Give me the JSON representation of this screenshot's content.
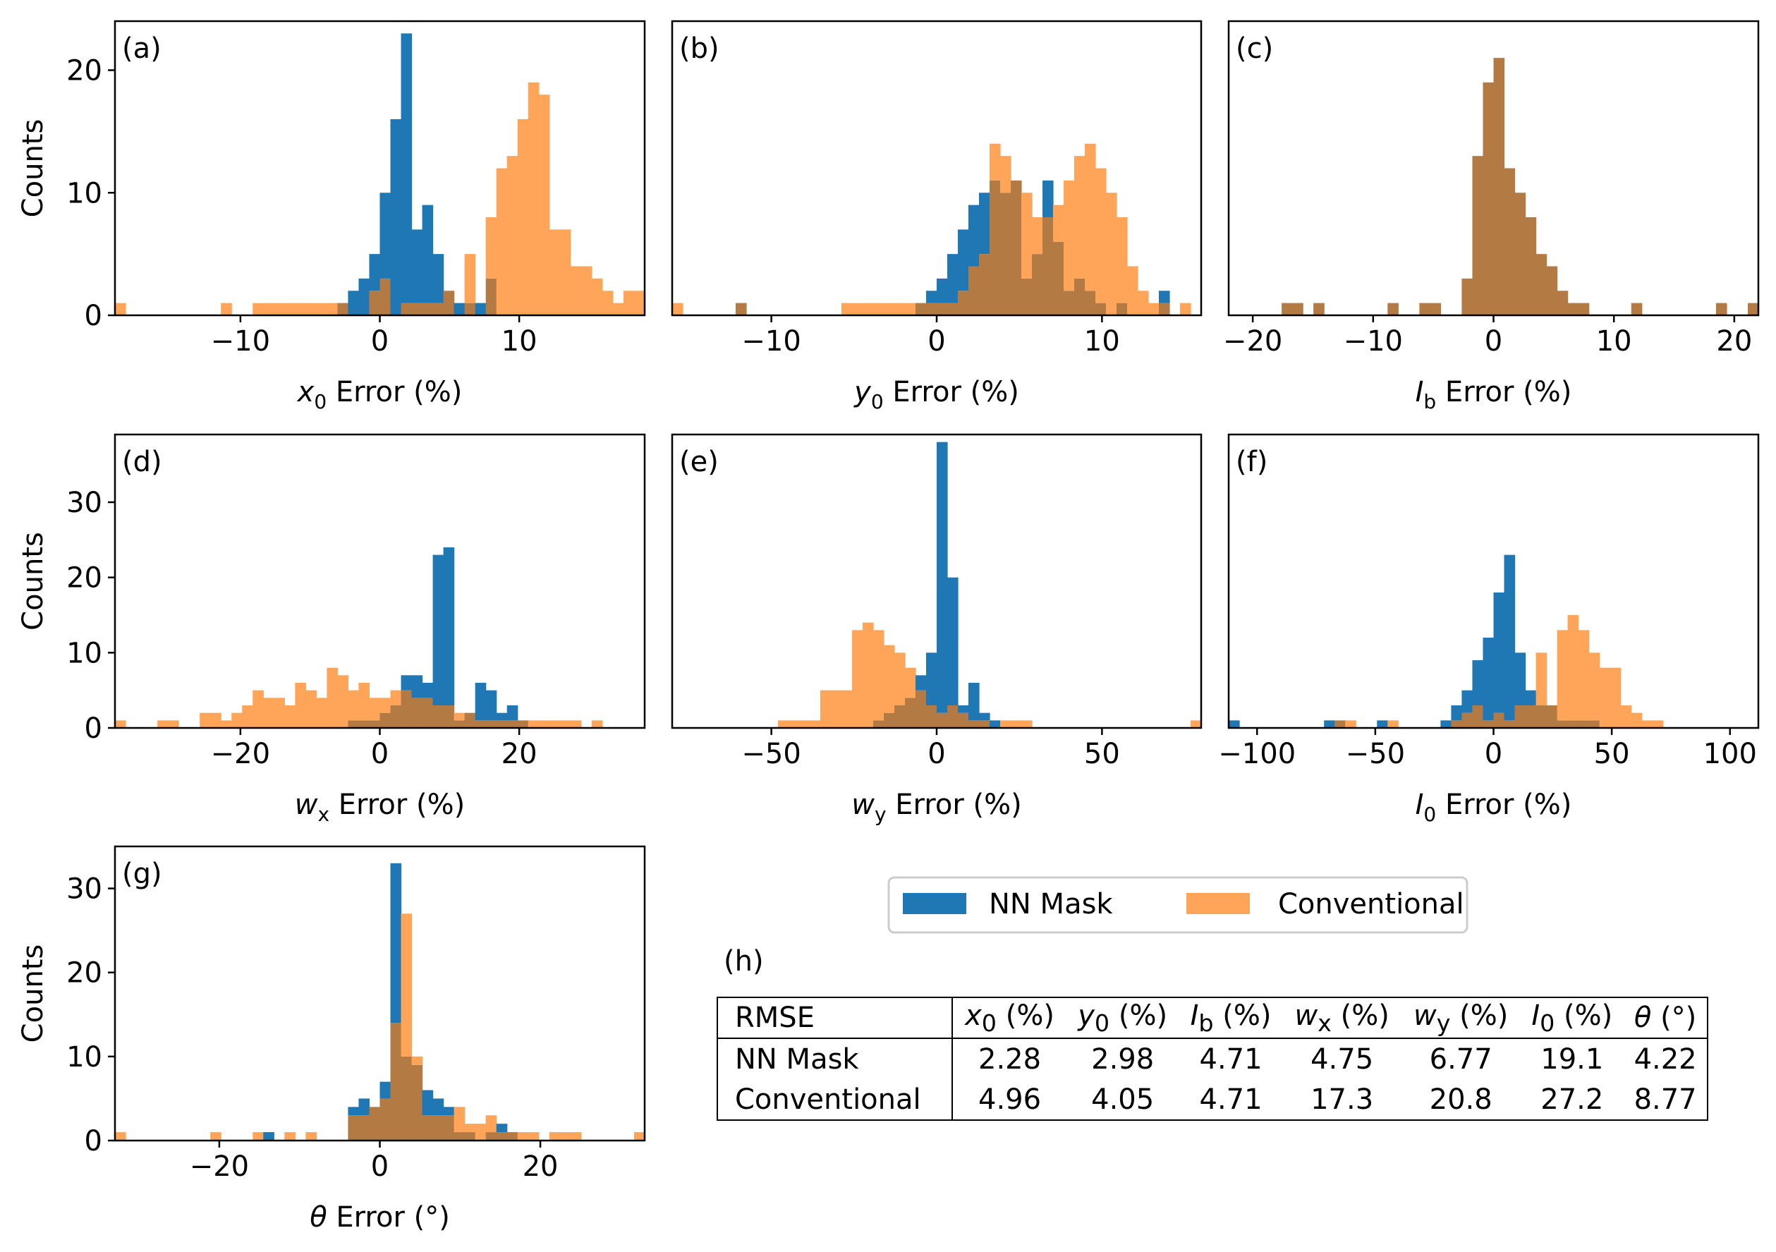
{
  "colors": {
    "nn": "#1f77b4",
    "conv": "#ffa55a",
    "overlap": "#b47a44"
  },
  "legend": {
    "nn_label": "NN Mask",
    "conv_label": "Conventional"
  },
  "chart_data": [
    {
      "type": "bar",
      "id": "a",
      "panel_label": "(a)",
      "xlabel_var": "x",
      "xlabel_sub": "0",
      "xlabel_rest": " Error (%)",
      "ylabel": "Counts",
      "xlim": [
        -19,
        19
      ],
      "ylim": [
        0,
        24
      ],
      "xticks": [
        -10,
        0,
        10
      ],
      "yticks": [
        0,
        10,
        20
      ],
      "bin_start": -19,
      "bin_width": 0.76,
      "series": [
        {
          "name": "NN Mask",
          "values": [
            0,
            0,
            0,
            0,
            0,
            0,
            0,
            0,
            0,
            0,
            0,
            0,
            0,
            0,
            0,
            0,
            0,
            0,
            0,
            0,
            0,
            1,
            2,
            3,
            5,
            10,
            16,
            23,
            7,
            9,
            5,
            2,
            1,
            1,
            1,
            3,
            0,
            0,
            0,
            0,
            0,
            0,
            0,
            0,
            0,
            0,
            0,
            0,
            0,
            0
          ]
        },
        {
          "name": "Conventional",
          "values": [
            1,
            0,
            0,
            0,
            0,
            0,
            0,
            0,
            0,
            0,
            1,
            0,
            0,
            1,
            1,
            1,
            1,
            1,
            1,
            1,
            1,
            1,
            0,
            0,
            2,
            3,
            0,
            1,
            1,
            1,
            1,
            2,
            0,
            5,
            0,
            8,
            12,
            13,
            16,
            19,
            18,
            7,
            7,
            4,
            4,
            3,
            2,
            1,
            2,
            2
          ]
        }
      ]
    },
    {
      "type": "bar",
      "id": "b",
      "panel_label": "(b)",
      "xlabel_var": "y",
      "xlabel_sub": "0",
      "xlabel_rest": " Error (%)",
      "ylabel": "",
      "xlim": [
        -16,
        16
      ],
      "ylim": [
        0,
        24
      ],
      "xticks": [
        -10,
        0,
        10
      ],
      "yticks": [],
      "bin_start": -16,
      "bin_width": 0.64,
      "series": [
        {
          "name": "NN Mask",
          "values": [
            0,
            0,
            0,
            0,
            0,
            0,
            1,
            0,
            0,
            0,
            0,
            0,
            0,
            0,
            0,
            0,
            0,
            0,
            0,
            0,
            0,
            0,
            0,
            1,
            2,
            3,
            5,
            7,
            9,
            10,
            11,
            10,
            11,
            3,
            5,
            11,
            6,
            2,
            3,
            2,
            1,
            0,
            1,
            0,
            0,
            0,
            2,
            0,
            0,
            0
          ]
        },
        {
          "name": "Conventional",
          "values": [
            1,
            0,
            0,
            0,
            0,
            0,
            1,
            0,
            0,
            0,
            0,
            0,
            0,
            0,
            0,
            0,
            1,
            1,
            1,
            1,
            1,
            1,
            1,
            1,
            1,
            1,
            1,
            2,
            4,
            5,
            14,
            13,
            11,
            10,
            8,
            8,
            9,
            11,
            13,
            14,
            12,
            10,
            8,
            4,
            2,
            1,
            1,
            0,
            1,
            0
          ]
        }
      ]
    },
    {
      "type": "bar",
      "id": "c",
      "panel_label": "(c)",
      "xlabel_var": "I",
      "xlabel_sub": "b",
      "xlabel_rest": " Error (%)",
      "ylabel": "",
      "xlim": [
        -22,
        22
      ],
      "ylim": [
        0,
        24
      ],
      "xticks": [
        -20,
        -10,
        0,
        10,
        20
      ],
      "yticks": [],
      "bin_start": -22,
      "bin_width": 0.88,
      "series": [
        {
          "name": "NN Mask",
          "values": [
            0,
            0,
            0,
            0,
            0,
            1,
            1,
            0,
            1,
            0,
            0,
            0,
            0,
            0,
            0,
            1,
            0,
            0,
            1,
            1,
            0,
            0,
            3,
            13,
            19,
            21,
            12,
            10,
            8,
            5,
            4,
            2,
            1,
            1,
            0,
            0,
            0,
            0,
            1,
            0,
            0,
            0,
            0,
            0,
            0,
            0,
            1,
            0,
            0,
            1
          ]
        },
        {
          "name": "Conventional",
          "values": [
            0,
            0,
            0,
            0,
            0,
            1,
            1,
            0,
            1,
            0,
            0,
            0,
            0,
            0,
            0,
            1,
            0,
            0,
            1,
            1,
            0,
            0,
            3,
            13,
            19,
            21,
            12,
            10,
            8,
            5,
            4,
            2,
            1,
            1,
            0,
            0,
            0,
            0,
            1,
            0,
            0,
            0,
            0,
            0,
            0,
            0,
            1,
            0,
            0,
            1
          ]
        }
      ]
    },
    {
      "type": "bar",
      "id": "d",
      "panel_label": "(d)",
      "xlabel_var": "w",
      "xlabel_sub": "x",
      "xlabel_rest": " Error (%)",
      "ylabel": "Counts",
      "xlim": [
        -38,
        38
      ],
      "ylim": [
        0,
        39
      ],
      "xticks": [
        -20,
        0,
        20
      ],
      "yticks": [
        0,
        10,
        20,
        30
      ],
      "bin_start": -38,
      "bin_width": 1.52,
      "series": [
        {
          "name": "NN Mask",
          "values": [
            0,
            0,
            0,
            0,
            0,
            0,
            0,
            0,
            0,
            0,
            0,
            0,
            0,
            0,
            0,
            0,
            0,
            0,
            0,
            0,
            0,
            0,
            1,
            1,
            1,
            2,
            3,
            7,
            7,
            6,
            23,
            24,
            1,
            2,
            6,
            5,
            2,
            3,
            1,
            0,
            0,
            0,
            0,
            0,
            0,
            0,
            0,
            0,
            0,
            0
          ]
        },
        {
          "name": "Conventional",
          "values": [
            1,
            0,
            0,
            0,
            1,
            1,
            0,
            0,
            2,
            2,
            1,
            2,
            3,
            5,
            4,
            4,
            3,
            6,
            5,
            4,
            8,
            7,
            5,
            6,
            4,
            4,
            5,
            5,
            4,
            4,
            3,
            3,
            2,
            2,
            1,
            1,
            1,
            1,
            1,
            1,
            1,
            1,
            1,
            1,
            0,
            1,
            0,
            0,
            0,
            0
          ]
        }
      ]
    },
    {
      "type": "bar",
      "id": "e",
      "panel_label": "(e)",
      "xlabel_var": "w",
      "xlabel_sub": "y",
      "xlabel_rest": " Error (%)",
      "ylabel": "",
      "xlim": [
        -80,
        80
      ],
      "ylim": [
        0,
        39
      ],
      "xticks": [
        -50,
        0,
        50
      ],
      "yticks": [],
      "bin_start": -80,
      "bin_width": 3.2,
      "series": [
        {
          "name": "NN Mask",
          "values": [
            0,
            0,
            0,
            0,
            0,
            0,
            0,
            0,
            0,
            0,
            0,
            0,
            0,
            0,
            0,
            0,
            0,
            0,
            0,
            1,
            2,
            3,
            4,
            7,
            10,
            38,
            20,
            3,
            6,
            2,
            1,
            0,
            0,
            0,
            0,
            0,
            0,
            0,
            0,
            0,
            0,
            0,
            0,
            0,
            0,
            0,
            0,
            0,
            0,
            0
          ]
        },
        {
          "name": "Conventional",
          "values": [
            0,
            0,
            0,
            0,
            0,
            0,
            0,
            0,
            0,
            0,
            1,
            1,
            1,
            1,
            5,
            5,
            5,
            13,
            14,
            13,
            11,
            10,
            8,
            5,
            3,
            2,
            3,
            2,
            1,
            1,
            0,
            1,
            1,
            1,
            0,
            0,
            0,
            0,
            0,
            0,
            0,
            0,
            0,
            0,
            0,
            0,
            0,
            0,
            0,
            1
          ]
        }
      ]
    },
    {
      "type": "bar",
      "id": "f",
      "panel_label": "(f)",
      "xlabel_var": "I",
      "xlabel_sub": "0",
      "xlabel_rest": " Error (%)",
      "ylabel": "",
      "xlim": [
        -112,
        112
      ],
      "ylim": [
        0,
        39
      ],
      "xticks": [
        -100,
        -50,
        0,
        50,
        100
      ],
      "yticks": [],
      "bin_start": -112,
      "bin_width": 4.48,
      "series": [
        {
          "name": "NN Mask",
          "values": [
            1,
            0,
            0,
            0,
            0,
            0,
            0,
            0,
            0,
            1,
            1,
            0,
            0,
            0,
            1,
            0,
            0,
            0,
            0,
            0,
            1,
            3,
            5,
            9,
            12,
            18,
            23,
            10,
            5,
            3,
            3,
            1,
            1,
            1,
            1,
            0,
            0,
            0,
            0,
            0,
            0,
            0,
            0,
            0,
            0,
            0,
            0,
            0,
            0,
            0
          ]
        },
        {
          "name": "Conventional",
          "values": [
            0,
            0,
            0,
            0,
            0,
            0,
            0,
            0,
            0,
            0,
            1,
            1,
            0,
            0,
            0,
            1,
            0,
            0,
            0,
            0,
            0,
            1,
            2,
            3,
            1,
            2,
            1,
            3,
            3,
            10,
            3,
            13,
            15,
            13,
            10,
            8,
            8,
            3,
            2,
            1,
            1,
            0,
            0,
            0,
            0,
            0,
            0,
            0,
            0,
            0
          ]
        }
      ]
    },
    {
      "type": "bar",
      "id": "g",
      "panel_label": "(g)",
      "xlabel_var": "θ",
      "xlabel_sub": "",
      "xlabel_rest": " Error (°)",
      "ylabel": "Counts",
      "xlim": [
        -33,
        33
      ],
      "ylim": [
        0,
        35
      ],
      "xticks": [
        -20,
        0,
        20
      ],
      "yticks": [
        0,
        10,
        20,
        30
      ],
      "bin_start": -33,
      "bin_width": 1.32,
      "series": [
        {
          "name": "NN Mask",
          "values": [
            0,
            0,
            0,
            0,
            0,
            0,
            0,
            0,
            0,
            0,
            0,
            0,
            0,
            0,
            1,
            0,
            0,
            0,
            0,
            0,
            0,
            0,
            4,
            5,
            4,
            7,
            33,
            10,
            9,
            6,
            5,
            4,
            1,
            1,
            0,
            1,
            2,
            1,
            0,
            0,
            0,
            0,
            0,
            0,
            0,
            0,
            0,
            0,
            0,
            0
          ]
        },
        {
          "name": "Conventional",
          "values": [
            1,
            0,
            0,
            0,
            0,
            0,
            0,
            0,
            0,
            1,
            0,
            0,
            0,
            1,
            0,
            0,
            1,
            0,
            1,
            0,
            0,
            0,
            3,
            3,
            4,
            5,
            14,
            27,
            10,
            3,
            3,
            3,
            4,
            2,
            2,
            3,
            1,
            1,
            1,
            1,
            0,
            1,
            1,
            1,
            0,
            0,
            0,
            0,
            0,
            1
          ]
        }
      ]
    }
  ],
  "table": {
    "panel_label": "(h)",
    "corner": "RMSE",
    "columns": [
      {
        "var": "x",
        "sub": "0",
        "unit": " (%)"
      },
      {
        "var": "y",
        "sub": "0",
        "unit": " (%)"
      },
      {
        "var": "I",
        "sub": "b",
        "unit": " (%)"
      },
      {
        "var": "w",
        "sub": "x",
        "unit": " (%)"
      },
      {
        "var": "w",
        "sub": "y",
        "unit": " (%)"
      },
      {
        "var": "I",
        "sub": "0",
        "unit": " (%)"
      },
      {
        "var": "θ",
        "sub": "",
        "unit": " (°)"
      }
    ],
    "rows": [
      {
        "label": "NN Mask",
        "values": [
          "2.28",
          "2.98",
          "4.71",
          "4.75",
          "6.77",
          "19.1",
          "4.22"
        ]
      },
      {
        "label": "Conventional",
        "values": [
          "4.96",
          "4.05",
          "4.71",
          "17.3",
          "20.8",
          "27.2",
          "8.77"
        ]
      }
    ]
  }
}
